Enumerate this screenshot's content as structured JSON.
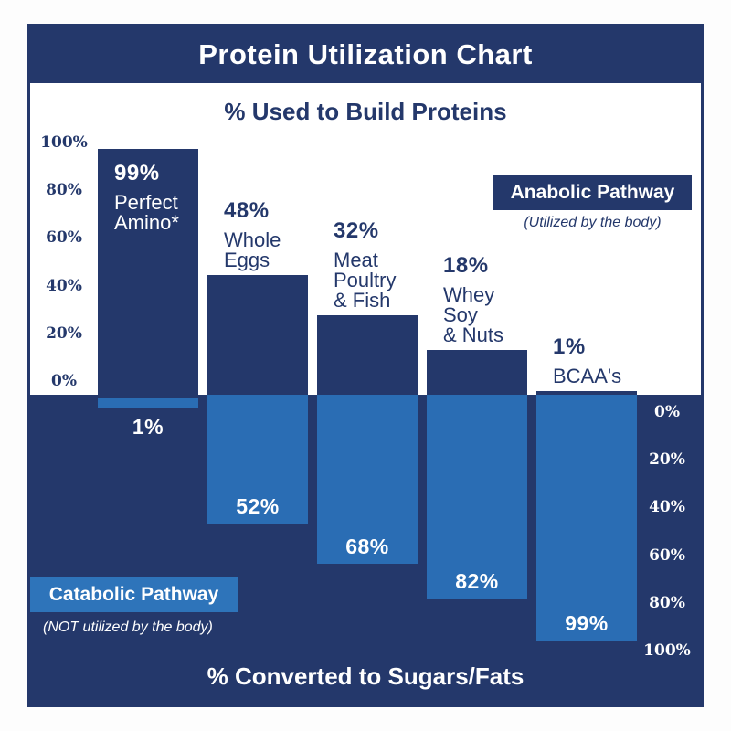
{
  "colors": {
    "navy": "#24386b",
    "light_blue": "#2a6db4",
    "catabolic_banner_blue": "#2e74ba",
    "page_background": "#fdfdfd",
    "text_on_dark": "#ffffff"
  },
  "header": {
    "title": "Protein Utilization Chart"
  },
  "top_section": {
    "axis_title": "% Used to Build Proteins",
    "axis_ticks": [
      "100%",
      "80%",
      "60%",
      "40%",
      "20%",
      "0%"
    ],
    "annotation": {
      "label": "Anabolic Pathway",
      "sublabel": "(Utilized by the body)"
    }
  },
  "bottom_section": {
    "axis_title": "% Converted to Sugars/Fats",
    "axis_ticks": [
      "0%",
      "20%",
      "40%",
      "60%",
      "80%",
      "100%"
    ],
    "annotation": {
      "label": "Catabolic Pathway",
      "sublabel": "(NOT utilized by the body)"
    }
  },
  "chart_data": {
    "type": "bar",
    "title": "Protein Utilization Chart",
    "top_axis_label": "% Used to Build Proteins",
    "bottom_axis_label": "% Converted to Sugars/Fats",
    "top_axis_range": [
      0,
      100
    ],
    "bottom_axis_range": [
      0,
      100
    ],
    "grid": false,
    "legend_position": "none",
    "categories": [
      "Perfect Amino*",
      "Whole Eggs",
      "Meat Poultry & Fish",
      "Whey Soy & Nuts",
      "BCAA's"
    ],
    "series": [
      {
        "name": "% Used to Build Proteins",
        "axis": "top",
        "values": [
          99,
          48,
          32,
          18,
          1
        ]
      },
      {
        "name": "% Converted to Sugars/Fats",
        "axis": "bottom",
        "values": [
          1,
          52,
          68,
          82,
          99
        ]
      }
    ],
    "bars": [
      {
        "name_lines": [
          "Perfect",
          "Amino*"
        ],
        "build_pct": 99,
        "build_label": "99%",
        "convert_pct": 1,
        "convert_label": "1%"
      },
      {
        "name_lines": [
          "Whole",
          "Eggs"
        ],
        "build_pct": 48,
        "build_label": "48%",
        "convert_pct": 52,
        "convert_label": "52%"
      },
      {
        "name_lines": [
          "Meat",
          "Poultry",
          "& Fish"
        ],
        "build_pct": 32,
        "build_label": "32%",
        "convert_pct": 68,
        "convert_label": "68%"
      },
      {
        "name_lines": [
          "Whey",
          "Soy",
          "& Nuts"
        ],
        "build_pct": 18,
        "build_label": "18%",
        "convert_pct": 82,
        "convert_label": "82%"
      },
      {
        "name_lines": [
          "BCAA's"
        ],
        "build_pct": 1,
        "build_label": "1%",
        "convert_pct": 99,
        "convert_label": "99%"
      }
    ]
  }
}
